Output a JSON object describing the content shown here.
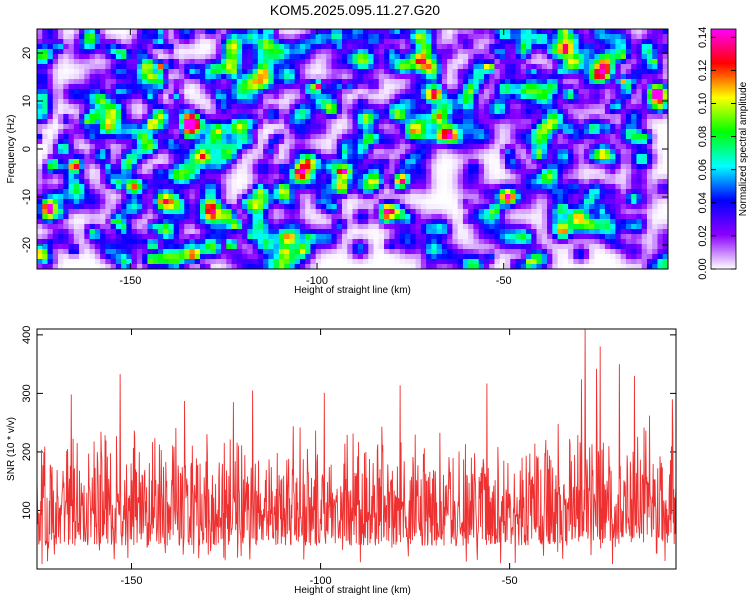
{
  "title": "KOM5.2025.095.11.27.G20",
  "chart_data": [
    {
      "type": "heatmap",
      "xlabel": "Height of straight line (km)",
      "ylabel": "Frequency (Hz)",
      "xlim": [
        -175,
        -6
      ],
      "ylim": [
        -25,
        25
      ],
      "xticks": [
        -150,
        -100,
        -50
      ],
      "yticks": [
        20,
        10,
        0,
        -10,
        -20
      ],
      "colorbar": {
        "label": "Normalized spectral amplitude",
        "range": [
          0.0,
          0.145
        ],
        "ticks": [
          "0.00",
          "0.02",
          "0.04",
          "0.06",
          "0.08",
          "0.10",
          "0.12",
          "0.14"
        ],
        "tick_values": [
          0.0,
          0.02,
          0.04,
          0.06,
          0.08,
          0.1,
          0.12,
          0.14
        ],
        "colormap": [
          "#ffffff",
          "#8b00ff",
          "#0000ff",
          "#00ffff",
          "#00ff00",
          "#ffff00",
          "#ff0000",
          "#ff00ff"
        ]
      },
      "hotspots": [
        {
          "x": -100,
          "y": 13,
          "value": 0.14
        },
        {
          "x": -142,
          "y": 17,
          "value": 0.12
        },
        {
          "x": -54,
          "y": 17,
          "value": 0.12
        },
        {
          "x": -18,
          "y": 14,
          "value": 0.11
        },
        {
          "x": -10,
          "y": 18,
          "value": 0.1
        },
        {
          "x": -123,
          "y": -20,
          "value": 0.1
        },
        {
          "x": -144,
          "y": -20,
          "value": 0.09
        }
      ],
      "background_level": 0.03
    },
    {
      "type": "line",
      "xlabel": "Height of straight line (km)",
      "ylabel": "SNR (10 * v/v)",
      "xlim": [
        -175,
        -6
      ],
      "ylim": [
        0,
        410
      ],
      "xticks": [
        -150,
        -100,
        -50
      ],
      "yticks": [
        100,
        200,
        300,
        400
      ],
      "color": "#ee3030",
      "typical_range": [
        40,
        230
      ],
      "peaks": [
        {
          "x": -30,
          "y": 410
        },
        {
          "x": -26,
          "y": 380
        },
        {
          "x": -21,
          "y": 350
        },
        {
          "x": -27,
          "y": 342
        },
        {
          "x": -153,
          "y": 333
        },
        {
          "x": -17,
          "y": 330
        },
        {
          "x": -31,
          "y": 324
        },
        {
          "x": -56,
          "y": 317
        },
        {
          "x": -79,
          "y": 314
        },
        {
          "x": -118,
          "y": 305
        },
        {
          "x": -99,
          "y": 301
        },
        {
          "x": -166,
          "y": 298
        },
        {
          "x": -7,
          "y": 290
        },
        {
          "x": -136,
          "y": 287
        },
        {
          "x": -123,
          "y": 285
        },
        {
          "x": -13,
          "y": 262
        }
      ]
    }
  ]
}
